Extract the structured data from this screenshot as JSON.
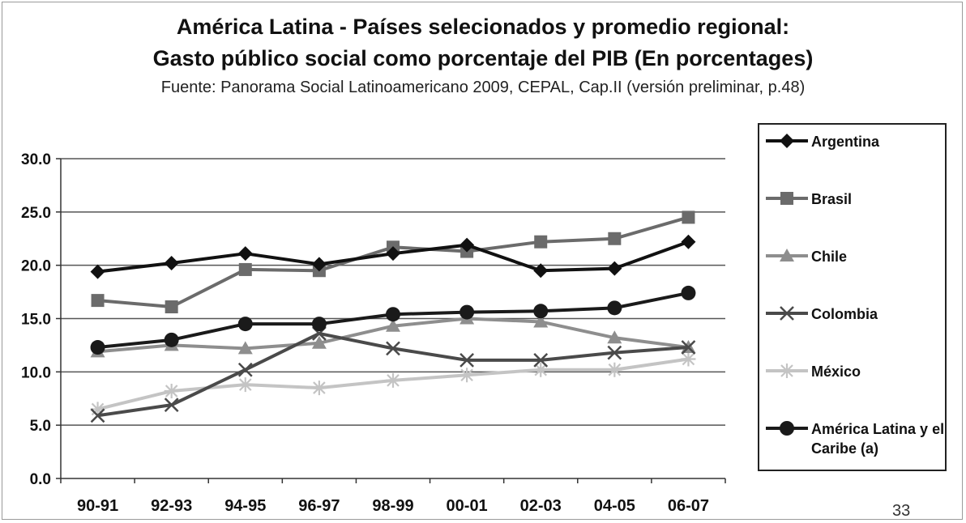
{
  "chart_data": {
    "type": "line",
    "title": "América Latina - Países selecionados y promedio regional:",
    "title_line2": "Gasto público social como porcentaje del PIB (En porcentages)",
    "subtitle": "Fuente: Panorama Social Latinoamericano 2009, CEPAL, Cap.II (versión preliminar, p.48)",
    "categories": [
      "90-91",
      "92-93",
      "94-95",
      "96-97",
      "98-99",
      "00-01",
      "02-03",
      "04-05",
      "06-07"
    ],
    "y_ticks": [
      "0.0",
      "5.0",
      "10.0",
      "15.0",
      "20.0",
      "25.0",
      "30.0"
    ],
    "ylim": [
      0,
      30
    ],
    "grid": true,
    "legend_position": "right",
    "series": [
      {
        "name": "Argentina",
        "values": [
          19.4,
          20.2,
          21.1,
          20.1,
          21.1,
          21.9,
          19.5,
          19.7,
          22.2
        ],
        "color": "#111111",
        "marker": "diamond"
      },
      {
        "name": "Brasil",
        "values": [
          16.7,
          16.1,
          19.6,
          19.5,
          21.7,
          21.3,
          22.2,
          22.5,
          24.5
        ],
        "color": "#6b6b6b",
        "marker": "square"
      },
      {
        "name": "Chile",
        "values": [
          11.9,
          12.5,
          12.2,
          12.7,
          14.3,
          15.0,
          14.7,
          13.2,
          12.3
        ],
        "color": "#8e8e8e",
        "marker": "triangle"
      },
      {
        "name": "Colombia",
        "values": [
          5.9,
          6.9,
          10.2,
          13.6,
          12.2,
          11.1,
          11.1,
          11.8,
          12.3
        ],
        "color": "#4a4a4a",
        "marker": "x"
      },
      {
        "name": "México",
        "values": [
          6.5,
          8.2,
          8.8,
          8.5,
          9.2,
          9.7,
          10.2,
          10.2,
          11.2
        ],
        "color": "#c4c4c4",
        "marker": "star"
      },
      {
        "name": "América Latina y el Caribe (a)",
        "values": [
          12.3,
          13.0,
          14.5,
          14.5,
          15.4,
          15.6,
          15.7,
          16.0,
          17.4
        ],
        "color": "#1a1a1a",
        "marker": "circle"
      }
    ]
  },
  "page_number": "33"
}
